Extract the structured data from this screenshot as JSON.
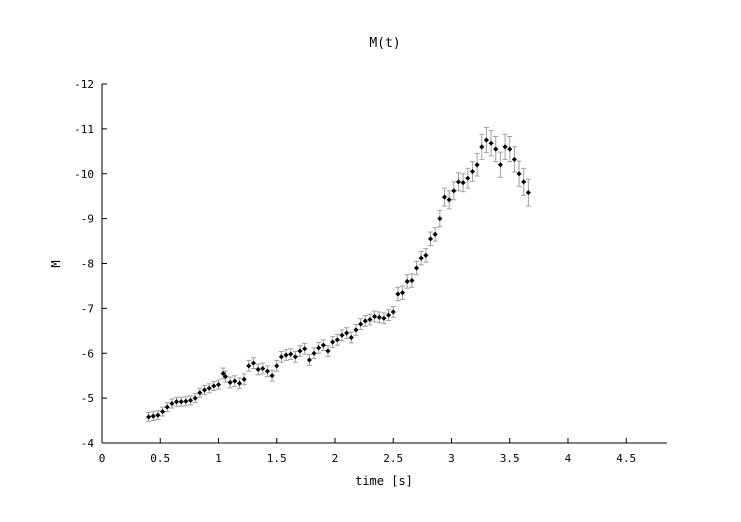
{
  "chart_data": {
    "type": "scatter",
    "title": "M(t)",
    "xlabel": "time [s]",
    "ylabel": "M",
    "xlim": [
      0,
      4.85
    ],
    "ylim": [
      -4,
      -12
    ],
    "y_axis_inverted": true,
    "grid": false,
    "legend": "none",
    "x_ticks": [
      0,
      0.5,
      1,
      1.5,
      2,
      2.5,
      3,
      3.5,
      4,
      4.5
    ],
    "x_tick_labels": [
      "0",
      "0.5",
      "1",
      "1.5",
      "2",
      "2.5",
      "3",
      "3.5",
      "4",
      "4.5"
    ],
    "y_ticks": [
      -12,
      -11,
      -10,
      -9,
      -8,
      -7,
      -6,
      -5,
      -4
    ],
    "y_tick_labels": [
      "-12",
      "-11",
      "-10",
      "-9",
      "-8",
      "-7",
      "-6",
      "-5",
      "-4"
    ],
    "colors": {
      "point": "#000000",
      "error_bar": "#a0a0a0",
      "axis": "#000000"
    },
    "series": [
      {
        "x": [
          0.4,
          0.44,
          0.48,
          0.52,
          0.56,
          0.6,
          0.64,
          0.68,
          0.72,
          0.76,
          0.8,
          0.84,
          0.88,
          0.92,
          0.96,
          1.0,
          1.04,
          1.06,
          1.1,
          1.14,
          1.18,
          1.22,
          1.26,
          1.3,
          1.34,
          1.38,
          1.42,
          1.46,
          1.5,
          1.54,
          1.58,
          1.62,
          1.66,
          1.7,
          1.74,
          1.78,
          1.82,
          1.86,
          1.9,
          1.94,
          1.98,
          2.02,
          2.06,
          2.1,
          2.14,
          2.18,
          2.22,
          2.26,
          2.3,
          2.34,
          2.38,
          2.42,
          2.46,
          2.5,
          2.54,
          2.58,
          2.62,
          2.66,
          2.7,
          2.74,
          2.78,
          2.82,
          2.86,
          2.9,
          2.94,
          2.98,
          3.02,
          3.06,
          3.1,
          3.14,
          3.18,
          3.22,
          3.26,
          3.3,
          3.34,
          3.38,
          3.42,
          3.46,
          3.5,
          3.54,
          3.58,
          3.62,
          3.66
        ],
        "y": [
          -4.58,
          -4.6,
          -4.62,
          -4.7,
          -4.8,
          -4.88,
          -4.92,
          -4.92,
          -4.93,
          -4.95,
          -5.0,
          -5.12,
          -5.18,
          -5.22,
          -5.27,
          -5.3,
          -5.55,
          -5.48,
          -5.35,
          -5.38,
          -5.33,
          -5.42,
          -5.72,
          -5.78,
          -5.64,
          -5.66,
          -5.6,
          -5.5,
          -5.72,
          -5.92,
          -5.96,
          -5.98,
          -5.92,
          -6.05,
          -6.1,
          -5.85,
          -6.0,
          -6.12,
          -6.18,
          -6.05,
          -6.25,
          -6.3,
          -6.4,
          -6.45,
          -6.35,
          -6.52,
          -6.65,
          -6.72,
          -6.75,
          -6.82,
          -6.8,
          -6.78,
          -6.85,
          -6.92,
          -7.32,
          -7.35,
          -7.6,
          -7.62,
          -7.9,
          -8.12,
          -8.18,
          -8.55,
          -8.65,
          -9.0,
          -9.48,
          -9.42,
          -9.62,
          -9.82,
          -9.8,
          -9.9,
          -10.05,
          -10.2,
          -10.6,
          -10.75,
          -10.68,
          -10.55,
          -10.2,
          -10.6,
          -10.55,
          -10.32,
          -10.0,
          -9.82,
          -9.58
        ],
        "y_error": [
          0.1,
          0.1,
          0.1,
          0.1,
          0.1,
          0.1,
          0.1,
          0.1,
          0.1,
          0.1,
          0.1,
          0.1,
          0.1,
          0.1,
          0.1,
          0.1,
          0.12,
          0.12,
          0.12,
          0.12,
          0.12,
          0.12,
          0.12,
          0.12,
          0.12,
          0.12,
          0.12,
          0.12,
          0.12,
          0.12,
          0.12,
          0.12,
          0.12,
          0.12,
          0.12,
          0.12,
          0.12,
          0.12,
          0.12,
          0.12,
          0.12,
          0.12,
          0.12,
          0.12,
          0.12,
          0.12,
          0.12,
          0.12,
          0.12,
          0.12,
          0.12,
          0.12,
          0.12,
          0.12,
          0.15,
          0.15,
          0.15,
          0.15,
          0.15,
          0.15,
          0.15,
          0.15,
          0.15,
          0.18,
          0.2,
          0.2,
          0.2,
          0.2,
          0.2,
          0.22,
          0.22,
          0.25,
          0.28,
          0.28,
          0.28,
          0.28,
          0.28,
          0.28,
          0.28,
          0.28,
          0.28,
          0.3,
          0.3
        ]
      }
    ]
  }
}
